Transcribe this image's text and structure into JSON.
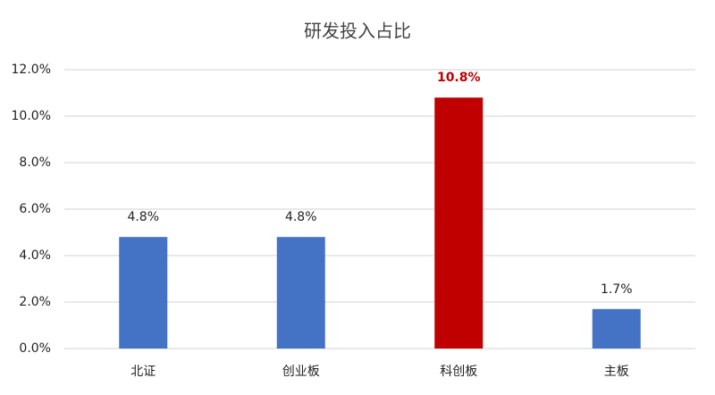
{
  "chart_data": {
    "type": "bar",
    "title": "研发投入占比",
    "categories": [
      "北证",
      "创业板",
      "科创板",
      "主板"
    ],
    "values": [
      4.8,
      4.8,
      10.8,
      1.7
    ],
    "value_labels": [
      "4.8%",
      "4.8%",
      "10.8%",
      "1.7%"
    ],
    "colors": [
      "#4472c4",
      "#4472c4",
      "#c00000",
      "#4472c4"
    ],
    "value_label_colors": [
      "#222222",
      "#222222",
      "#c00000",
      "#222222"
    ],
    "ylim": [
      0,
      12
    ],
    "yticks": [
      {
        "value": 0,
        "label": "0.0%"
      },
      {
        "value": 2,
        "label": "2.0%"
      },
      {
        "value": 4,
        "label": "4.0%"
      },
      {
        "value": 6,
        "label": "6.0%"
      },
      {
        "value": 8,
        "label": "8.0%"
      },
      {
        "value": 10,
        "label": "10.0%"
      },
      {
        "value": 12,
        "label": "12.0%"
      }
    ],
    "grid": true
  }
}
